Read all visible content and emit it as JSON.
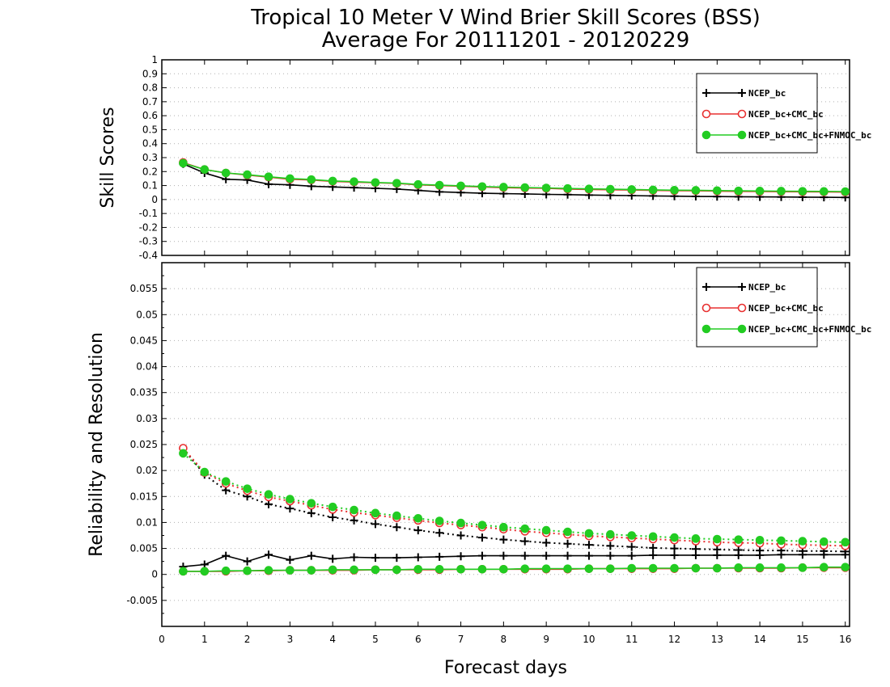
{
  "figure": {
    "title_line1": "Tropical 10 Meter V Wind Brier Skill Scores (BSS)",
    "title_line2": "Average For 20111201 - 20120229",
    "xlabel": "Forecast days"
  },
  "colors": {
    "black": "#000000",
    "red": "#e83030",
    "green": "#22cc22",
    "grid": "#aaaaaa"
  },
  "chart_data": [
    {
      "type": "line",
      "ylabel": "Skill Scores",
      "xlim": [
        0,
        16.1
      ],
      "ylim": [
        -0.4,
        1.0
      ],
      "x_ticks": [
        "0",
        "1",
        "2",
        "3",
        "4",
        "5",
        "6",
        "7",
        "8",
        "9",
        "10",
        "11",
        "12",
        "13",
        "14",
        "15",
        "16"
      ],
      "y_ticks": [
        "-0.4",
        "-0.3",
        "-0.2",
        "-0.1",
        "0",
        "0.1",
        "0.2",
        "0.3",
        "0.4",
        "0.5",
        "0.6",
        "0.7",
        "0.8",
        "0.9",
        "1"
      ],
      "grid": "horizontal dotted",
      "legend_position": "top-right",
      "x": [
        0.5,
        1,
        1.5,
        2,
        2.5,
        3,
        3.5,
        4,
        4.5,
        5,
        5.5,
        6,
        6.5,
        7,
        7.5,
        8,
        8.5,
        9,
        9.5,
        10,
        10.5,
        11,
        11.5,
        12,
        12.5,
        13,
        13.5,
        14,
        14.5,
        15,
        15.5,
        16
      ],
      "series": [
        {
          "name": "NCEP_bc",
          "color": "#000000",
          "marker": "plus",
          "style": "solid",
          "values": [
            0.255,
            0.19,
            0.145,
            0.14,
            0.11,
            0.105,
            0.095,
            0.09,
            0.085,
            0.08,
            0.075,
            0.065,
            0.055,
            0.05,
            0.045,
            0.042,
            0.04,
            0.037,
            0.035,
            0.032,
            0.03,
            0.028,
            0.026,
            0.024,
            0.022,
            0.021,
            0.02,
            0.019,
            0.018,
            0.017,
            0.016,
            0.015
          ]
        },
        {
          "name": "NCEP_bc+CMC_bc",
          "color": "#e83030",
          "marker": "open-circle",
          "style": "solid",
          "values": [
            0.265,
            0.215,
            0.19,
            0.175,
            0.16,
            0.145,
            0.14,
            0.13,
            0.125,
            0.12,
            0.115,
            0.105,
            0.1,
            0.095,
            0.09,
            0.085,
            0.082,
            0.08,
            0.075,
            0.072,
            0.07,
            0.068,
            0.065,
            0.063,
            0.062,
            0.06,
            0.058,
            0.057,
            0.056,
            0.055,
            0.054,
            0.053
          ]
        },
        {
          "name": "NCEP_bc+CMC_bc+FNMOC_bc",
          "color": "#22cc22",
          "marker": "filled-circle",
          "style": "solid",
          "values": [
            0.26,
            0.215,
            0.19,
            0.178,
            0.163,
            0.15,
            0.143,
            0.133,
            0.128,
            0.122,
            0.117,
            0.108,
            0.103,
            0.098,
            0.093,
            0.089,
            0.086,
            0.083,
            0.079,
            0.076,
            0.074,
            0.072,
            0.069,
            0.067,
            0.066,
            0.064,
            0.062,
            0.061,
            0.06,
            0.059,
            0.058,
            0.057
          ]
        }
      ]
    },
    {
      "type": "line",
      "ylabel": "Reliability and Resolution",
      "xlim": [
        0,
        16.1
      ],
      "ylim": [
        -0.01,
        0.06
      ],
      "x_ticks": [
        "0",
        "1",
        "2",
        "3",
        "4",
        "5",
        "6",
        "7",
        "8",
        "9",
        "10",
        "11",
        "12",
        "13",
        "14",
        "15",
        "16"
      ],
      "y_ticks": [
        "-0.005",
        "0",
        "0.005",
        "0.01",
        "0.015",
        "0.02",
        "0.025",
        "0.03",
        "0.035",
        "0.04",
        "0.045",
        "0.05",
        "0.055"
      ],
      "grid": "horizontal dotted",
      "legend_position": "top-right",
      "x": [
        0.5,
        1,
        1.5,
        2,
        2.5,
        3,
        3.5,
        4,
        4.5,
        5,
        5.5,
        6,
        6.5,
        7,
        7.5,
        8,
        8.5,
        9,
        9.5,
        10,
        10.5,
        11,
        11.5,
        12,
        12.5,
        13,
        13.5,
        14,
        14.5,
        15,
        15.5,
        16
      ],
      "legend": [
        {
          "name": "NCEP_bc",
          "color": "#000000",
          "marker": "plus"
        },
        {
          "name": "NCEP_bc+CMC_bc",
          "color": "#e83030",
          "marker": "open-circle"
        },
        {
          "name": "NCEP_bc+CMC_bc+FNMOC_bc",
          "color": "#22cc22",
          "marker": "filled-circle"
        }
      ],
      "series": [
        {
          "name": "NCEP_bc",
          "color": "#000000",
          "marker": "plus",
          "style": "dotted",
          "values": [
            0.0242,
            0.0192,
            0.0162,
            0.015,
            0.0135,
            0.0127,
            0.0118,
            0.011,
            0.0104,
            0.0097,
            0.0091,
            0.0085,
            0.008,
            0.0075,
            0.0071,
            0.0067,
            0.0064,
            0.0061,
            0.0059,
            0.0057,
            0.0055,
            0.0053,
            0.0051,
            0.005,
            0.0049,
            0.0048,
            0.0047,
            0.0046,
            0.0046,
            0.0045,
            0.0045,
            0.0044
          ]
        },
        {
          "name": "NCEP_bc+CMC_bc",
          "color": "#e83030",
          "marker": "open-circle",
          "style": "dotted",
          "values": [
            0.0243,
            0.0196,
            0.0175,
            0.0161,
            0.0149,
            0.0141,
            0.0133,
            0.0125,
            0.0119,
            0.0114,
            0.0109,
            0.0104,
            0.0099,
            0.0095,
            0.0091,
            0.0087,
            0.0083,
            0.008,
            0.0077,
            0.0074,
            0.0072,
            0.007,
            0.0068,
            0.0066,
            0.0064,
            0.0062,
            0.0061,
            0.006,
            0.0058,
            0.0057,
            0.0056,
            0.0055
          ]
        },
        {
          "name": "NCEP_bc+CMC_bc+FNMOC_bc",
          "color": "#22cc22",
          "marker": "filled-circle",
          "style": "dotted",
          "values": [
            0.0233,
            0.0197,
            0.0179,
            0.0165,
            0.0154,
            0.0145,
            0.0137,
            0.013,
            0.0124,
            0.0118,
            0.0113,
            0.0108,
            0.0103,
            0.0099,
            0.0095,
            0.0091,
            0.0088,
            0.0085,
            0.0082,
            0.0079,
            0.0077,
            0.0075,
            0.0073,
            0.0071,
            0.0069,
            0.0068,
            0.0067,
            0.0066,
            0.0065,
            0.0064,
            0.0063,
            0.0062
          ]
        },
        {
          "name": "NCEP_bc",
          "color": "#000000",
          "marker": "plus",
          "style": "solid",
          "values": [
            0.0015,
            0.0019,
            0.0036,
            0.0025,
            0.0038,
            0.0028,
            0.0036,
            0.003,
            0.0033,
            0.0032,
            0.0032,
            0.0033,
            0.0034,
            0.0035,
            0.0036,
            0.0036,
            0.0036,
            0.0036,
            0.0036,
            0.0036,
            0.0036,
            0.0036,
            0.0037,
            0.0037,
            0.0037,
            0.0037,
            0.0037,
            0.0037,
            0.0038,
            0.0038,
            0.0038,
            0.0038
          ]
        },
        {
          "name": "NCEP_bc+CMC_bc",
          "color": "#e83030",
          "marker": "open-circle",
          "style": "solid",
          "values": [
            0.0006,
            0.0006,
            0.0006,
            0.0007,
            0.0007,
            0.0008,
            0.0008,
            0.0008,
            0.0008,
            0.0009,
            0.0009,
            0.0009,
            0.0009,
            0.001,
            0.001,
            0.001,
            0.001,
            0.001,
            0.001,
            0.0011,
            0.0011,
            0.0011,
            0.0011,
            0.0011,
            0.0012,
            0.0012,
            0.0012,
            0.0012,
            0.0012,
            0.0013,
            0.0013,
            0.0013
          ]
        },
        {
          "name": "NCEP_bc+CMC_bc+FNMOC_bc",
          "color": "#22cc22",
          "marker": "filled-circle",
          "style": "solid",
          "values": [
            0.0006,
            0.0006,
            0.0007,
            0.0007,
            0.0008,
            0.0008,
            0.0008,
            0.0009,
            0.0009,
            0.0009,
            0.0009,
            0.001,
            0.001,
            0.001,
            0.001,
            0.001,
            0.0011,
            0.0011,
            0.0011,
            0.0011,
            0.0011,
            0.0012,
            0.0012,
            0.0012,
            0.0012,
            0.0012,
            0.0013,
            0.0013,
            0.0013,
            0.0013,
            0.0014,
            0.0014
          ]
        }
      ]
    }
  ]
}
